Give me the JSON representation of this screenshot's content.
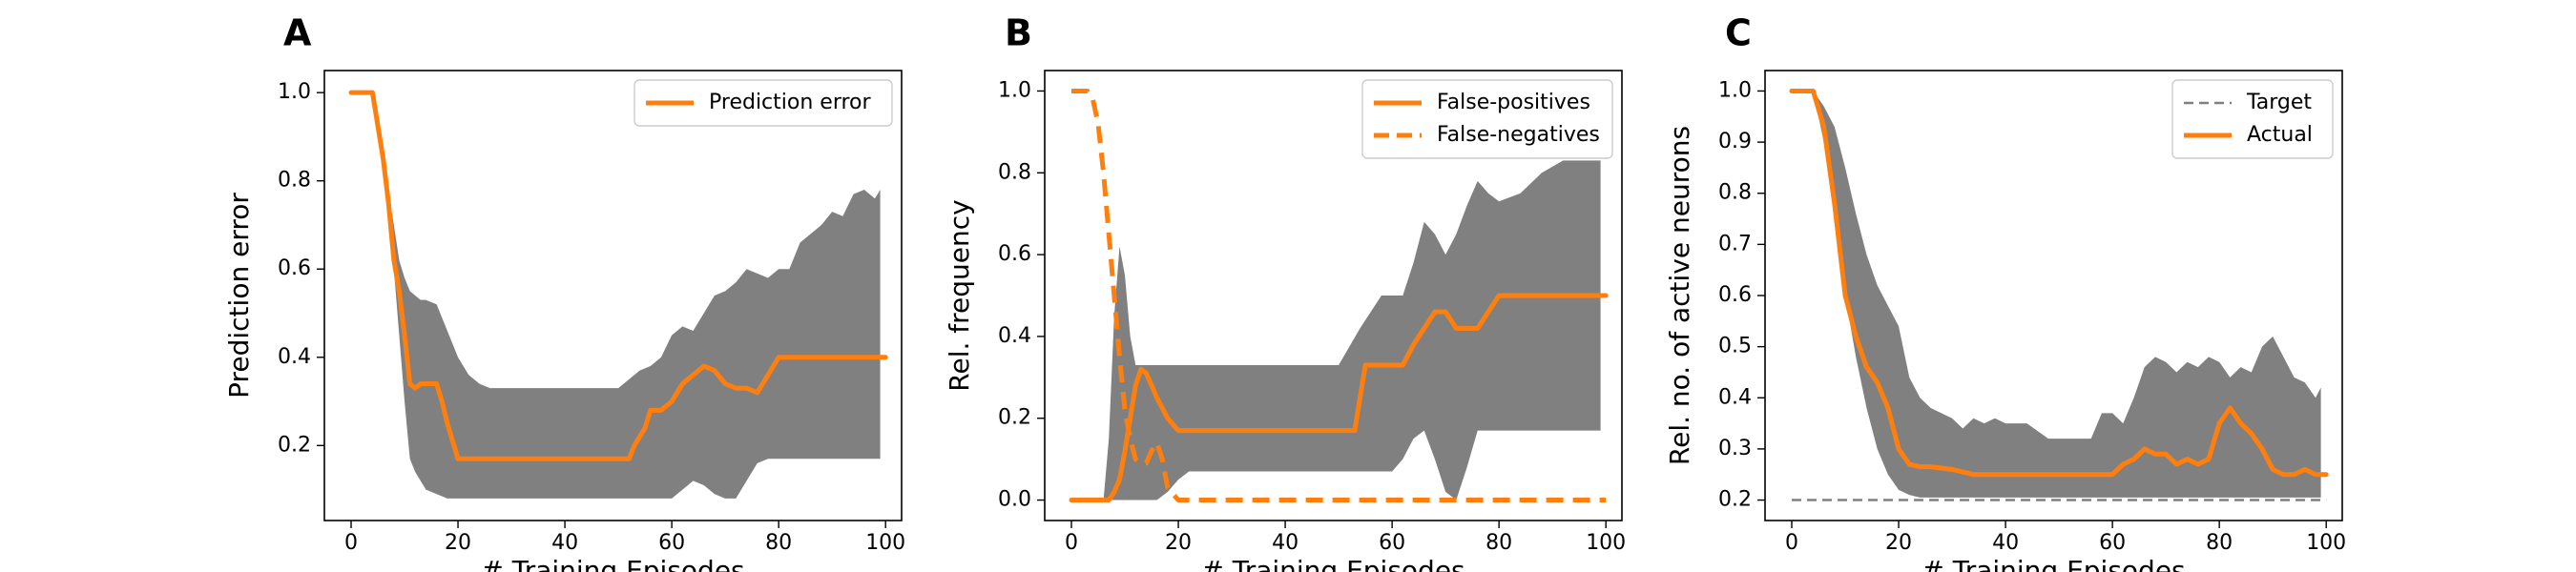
{
  "colors": {
    "line": "#ff7f0e",
    "band": "#808080",
    "target": "#808080"
  },
  "chart_data": [
    {
      "panel": "A",
      "type": "line",
      "xlabel": "# Training Episodes",
      "ylabel": "Prediction error",
      "xlim": [
        -5,
        103
      ],
      "ylim": [
        0.03,
        1.05
      ],
      "xticks": [
        0,
        20,
        40,
        60,
        80,
        100
      ],
      "yticks": [
        0.2,
        0.4,
        0.6,
        0.8,
        1.0
      ],
      "ytick_format": 1,
      "legend_loc": "upper right",
      "band": {
        "x": [
          0,
          4,
          6,
          8,
          9,
          10,
          11,
          12,
          13,
          14,
          16,
          18,
          20,
          22,
          24,
          26,
          28,
          30,
          40,
          50,
          52,
          54,
          56,
          58,
          60,
          62,
          64,
          66,
          68,
          70,
          72,
          74,
          76,
          78,
          80,
          82,
          84,
          86,
          88,
          90,
          92,
          94,
          96,
          98,
          99
        ],
        "upper": [
          1.0,
          1.0,
          0.85,
          0.7,
          0.62,
          0.58,
          0.55,
          0.54,
          0.53,
          0.53,
          0.52,
          0.46,
          0.4,
          0.36,
          0.34,
          0.33,
          0.33,
          0.33,
          0.33,
          0.33,
          0.35,
          0.37,
          0.38,
          0.4,
          0.45,
          0.47,
          0.46,
          0.5,
          0.54,
          0.55,
          0.57,
          0.6,
          0.59,
          0.58,
          0.6,
          0.6,
          0.66,
          0.68,
          0.7,
          0.73,
          0.72,
          0.77,
          0.78,
          0.76,
          0.78
        ],
        "lower": [
          1.0,
          1.0,
          0.85,
          0.6,
          0.45,
          0.3,
          0.17,
          0.14,
          0.12,
          0.1,
          0.09,
          0.08,
          0.08,
          0.08,
          0.08,
          0.08,
          0.08,
          0.08,
          0.08,
          0.08,
          0.08,
          0.08,
          0.08,
          0.08,
          0.08,
          0.1,
          0.12,
          0.11,
          0.09,
          0.08,
          0.08,
          0.12,
          0.16,
          0.17,
          0.17,
          0.17,
          0.17,
          0.17,
          0.17,
          0.17,
          0.17,
          0.17,
          0.17,
          0.17,
          0.17
        ]
      },
      "series": [
        {
          "name": "Prediction error",
          "style": "solid",
          "x": [
            0,
            4,
            6,
            7,
            8,
            9,
            10,
            11,
            12,
            13,
            14,
            16,
            17,
            18,
            20,
            22,
            30,
            40,
            50,
            52,
            53,
            55,
            56,
            58,
            60,
            62,
            64,
            66,
            68,
            70,
            72,
            74,
            76,
            78,
            80,
            82,
            90,
            100
          ],
          "y": [
            1.0,
            1.0,
            0.85,
            0.75,
            0.62,
            0.55,
            0.45,
            0.34,
            0.33,
            0.34,
            0.34,
            0.34,
            0.3,
            0.25,
            0.17,
            0.17,
            0.17,
            0.17,
            0.17,
            0.17,
            0.2,
            0.24,
            0.28,
            0.28,
            0.3,
            0.34,
            0.36,
            0.38,
            0.37,
            0.34,
            0.33,
            0.33,
            0.32,
            0.36,
            0.4,
            0.4,
            0.4,
            0.4
          ]
        }
      ]
    },
    {
      "panel": "B",
      "type": "line",
      "xlabel": "# Training Episodes",
      "ylabel": "Rel. frequency",
      "xlim": [
        -5,
        103
      ],
      "ylim": [
        -0.05,
        1.05
      ],
      "xticks": [
        0,
        20,
        40,
        60,
        80,
        100
      ],
      "yticks": [
        0.0,
        0.2,
        0.4,
        0.6,
        0.8,
        1.0
      ],
      "ytick_format": 1,
      "legend_loc": "upper right",
      "band": {
        "x": [
          6,
          7,
          8,
          9,
          10,
          11,
          12,
          14,
          16,
          18,
          20,
          22,
          40,
          50,
          54,
          58,
          60,
          62,
          64,
          66,
          68,
          70,
          72,
          74,
          76,
          78,
          80,
          84,
          88,
          92,
          96,
          99
        ],
        "upper": [
          0.0,
          0.15,
          0.45,
          0.62,
          0.55,
          0.4,
          0.33,
          0.33,
          0.33,
          0.33,
          0.33,
          0.33,
          0.33,
          0.33,
          0.42,
          0.5,
          0.5,
          0.5,
          0.58,
          0.68,
          0.65,
          0.6,
          0.65,
          0.72,
          0.78,
          0.75,
          0.73,
          0.75,
          0.8,
          0.83,
          0.83,
          0.83
        ],
        "lower": [
          0.0,
          0.0,
          0.0,
          0.0,
          0.0,
          0.0,
          0.0,
          0.0,
          0.0,
          0.02,
          0.05,
          0.07,
          0.07,
          0.07,
          0.07,
          0.07,
          0.07,
          0.1,
          0.15,
          0.17,
          0.1,
          0.02,
          0.0,
          0.08,
          0.17,
          0.17,
          0.17,
          0.17,
          0.17,
          0.17,
          0.17,
          0.17
        ]
      },
      "series": [
        {
          "name": "False-positives",
          "style": "solid",
          "x": [
            0,
            7,
            8,
            9,
            10,
            11,
            12,
            13,
            14,
            16,
            18,
            20,
            40,
            50,
            53,
            55,
            60,
            62,
            64,
            66,
            68,
            70,
            72,
            74,
            76,
            78,
            80,
            90,
            100
          ],
          "y": [
            0.0,
            0.0,
            0.02,
            0.05,
            0.12,
            0.2,
            0.28,
            0.32,
            0.31,
            0.25,
            0.2,
            0.17,
            0.17,
            0.17,
            0.17,
            0.33,
            0.33,
            0.33,
            0.38,
            0.42,
            0.46,
            0.46,
            0.42,
            0.42,
            0.42,
            0.46,
            0.5,
            0.5,
            0.5
          ]
        },
        {
          "name": "False-negatives",
          "style": "dashed",
          "x": [
            0,
            3,
            4,
            5,
            6,
            7,
            8,
            9,
            10,
            11,
            12,
            13,
            14,
            15,
            16,
            17,
            18,
            20,
            22,
            40,
            60,
            80,
            100
          ],
          "y": [
            1.0,
            1.0,
            0.98,
            0.92,
            0.8,
            0.65,
            0.5,
            0.35,
            0.22,
            0.15,
            0.1,
            0.09,
            0.09,
            0.12,
            0.14,
            0.1,
            0.03,
            0.0,
            0.0,
            0.0,
            0.0,
            0.0,
            0.0
          ]
        }
      ]
    },
    {
      "panel": "C",
      "type": "line",
      "xlabel": "# Training Episodes",
      "ylabel": "Rel. no. of active neurons",
      "xlim": [
        -5,
        103
      ],
      "ylim": [
        0.16,
        1.04
      ],
      "xticks": [
        0,
        20,
        40,
        60,
        80,
        100
      ],
      "yticks": [
        0.2,
        0.3,
        0.4,
        0.5,
        0.6,
        0.7,
        0.8,
        0.9,
        1.0
      ],
      "ytick_format": 1,
      "legend_loc": "upper right",
      "band": {
        "x": [
          0,
          4,
          6,
          8,
          10,
          12,
          14,
          16,
          18,
          20,
          22,
          24,
          26,
          28,
          30,
          32,
          34,
          36,
          38,
          40,
          44,
          48,
          52,
          56,
          58,
          60,
          62,
          64,
          66,
          68,
          70,
          72,
          74,
          76,
          78,
          80,
          82,
          84,
          86,
          88,
          90,
          92,
          94,
          96,
          98,
          99
        ],
        "upper": [
          1.0,
          1.0,
          0.97,
          0.93,
          0.85,
          0.76,
          0.68,
          0.62,
          0.58,
          0.54,
          0.44,
          0.4,
          0.38,
          0.37,
          0.36,
          0.34,
          0.36,
          0.35,
          0.36,
          0.35,
          0.35,
          0.32,
          0.32,
          0.32,
          0.37,
          0.37,
          0.35,
          0.4,
          0.46,
          0.48,
          0.47,
          0.45,
          0.47,
          0.46,
          0.48,
          0.47,
          0.44,
          0.46,
          0.45,
          0.5,
          0.52,
          0.48,
          0.44,
          0.43,
          0.4,
          0.42
        ],
        "lower": [
          1.0,
          1.0,
          0.9,
          0.75,
          0.6,
          0.48,
          0.38,
          0.3,
          0.25,
          0.22,
          0.21,
          0.205,
          0.205,
          0.205,
          0.205,
          0.205,
          0.205,
          0.205,
          0.205,
          0.205,
          0.205,
          0.205,
          0.205,
          0.205,
          0.205,
          0.205,
          0.205,
          0.205,
          0.205,
          0.205,
          0.205,
          0.205,
          0.205,
          0.205,
          0.205,
          0.205,
          0.205,
          0.205,
          0.205,
          0.205,
          0.205,
          0.205,
          0.205,
          0.205,
          0.205,
          0.205
        ]
      },
      "series": [
        {
          "name": "Target",
          "style": "dashed",
          "width": "thin",
          "x": [
            0,
            100
          ],
          "y": [
            0.2,
            0.2
          ]
        },
        {
          "name": "Actual",
          "style": "solid",
          "x": [
            0,
            4,
            6,
            8,
            10,
            12,
            14,
            16,
            18,
            20,
            22,
            24,
            26,
            30,
            34,
            40,
            50,
            60,
            62,
            64,
            66,
            68,
            70,
            72,
            74,
            76,
            78,
            80,
            82,
            84,
            86,
            88,
            90,
            92,
            94,
            96,
            98,
            100
          ],
          "y": [
            1.0,
            1.0,
            0.93,
            0.78,
            0.6,
            0.52,
            0.46,
            0.43,
            0.38,
            0.3,
            0.27,
            0.265,
            0.265,
            0.26,
            0.25,
            0.25,
            0.25,
            0.25,
            0.27,
            0.28,
            0.3,
            0.29,
            0.29,
            0.27,
            0.28,
            0.27,
            0.28,
            0.35,
            0.38,
            0.35,
            0.33,
            0.3,
            0.26,
            0.25,
            0.25,
            0.26,
            0.25,
            0.25
          ]
        }
      ]
    }
  ]
}
